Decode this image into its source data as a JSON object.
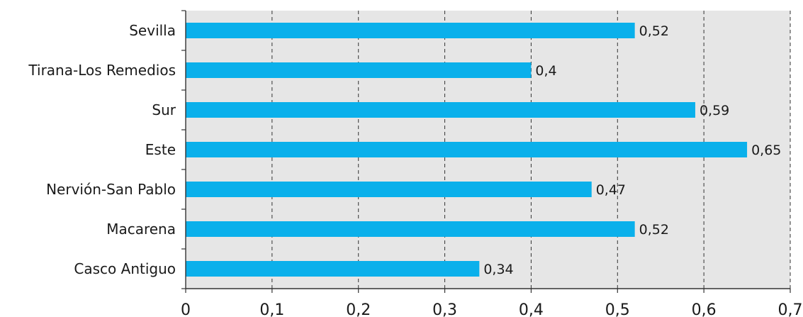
{
  "chart_data": {
    "type": "bar",
    "orientation": "horizontal",
    "title": "",
    "xlabel": "",
    "ylabel": "",
    "categories": [
      "Sevilla",
      "Tirana-Los Remedios",
      "Sur",
      "Este",
      "Nervión-San Pablo",
      "Macarena",
      "Casco Antiguo"
    ],
    "values": [
      0.52,
      0.4,
      0.59,
      0.65,
      0.47,
      0.52,
      0.34
    ],
    "value_labels": [
      "0,52",
      "0,4",
      "0,59",
      "0,65",
      "0,47",
      "0,52",
      "0,34"
    ],
    "xlim": [
      0,
      0.7
    ],
    "xticks": [
      0,
      0.1,
      0.2,
      0.3,
      0.4,
      0.5,
      0.6,
      0.7
    ],
    "xtick_labels": [
      "0",
      "0,1",
      "0,2",
      "0,3",
      "0,4",
      "0,5",
      "0,6",
      "0,7"
    ],
    "grid": "vertical dashed",
    "legend": "none",
    "colors": {
      "bar": "#0ab0eb",
      "plot_background": "#e6e6e6",
      "grid": "#333333",
      "axis": "#333333"
    }
  }
}
